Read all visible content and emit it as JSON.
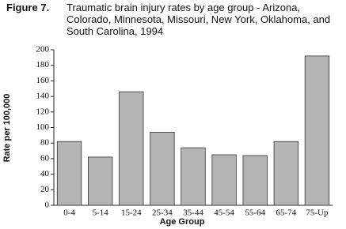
{
  "chart_data": {
    "type": "bar",
    "figure_label": "Figure 7.",
    "title": "Traumatic brain injury rates by age group - Arizona, Colorado, Minnesota, Missouri, New York, Oklahoma, and South Carolina, 1994",
    "x_label": "Age Group",
    "y_label": "Rate per 100,000",
    "categories": [
      "0-4",
      "5-14",
      "15-24",
      "25-34",
      "35-44",
      "45-54",
      "55-64",
      "65-74",
      "75-Up"
    ],
    "values": [
      82,
      62,
      146,
      94,
      74,
      65,
      64,
      82,
      192
    ],
    "color": "#b4b4b4",
    "ylim": [
      0,
      200
    ],
    "yticks": [
      0,
      20,
      40,
      60,
      80,
      100,
      120,
      140,
      160,
      180,
      200
    ]
  }
}
